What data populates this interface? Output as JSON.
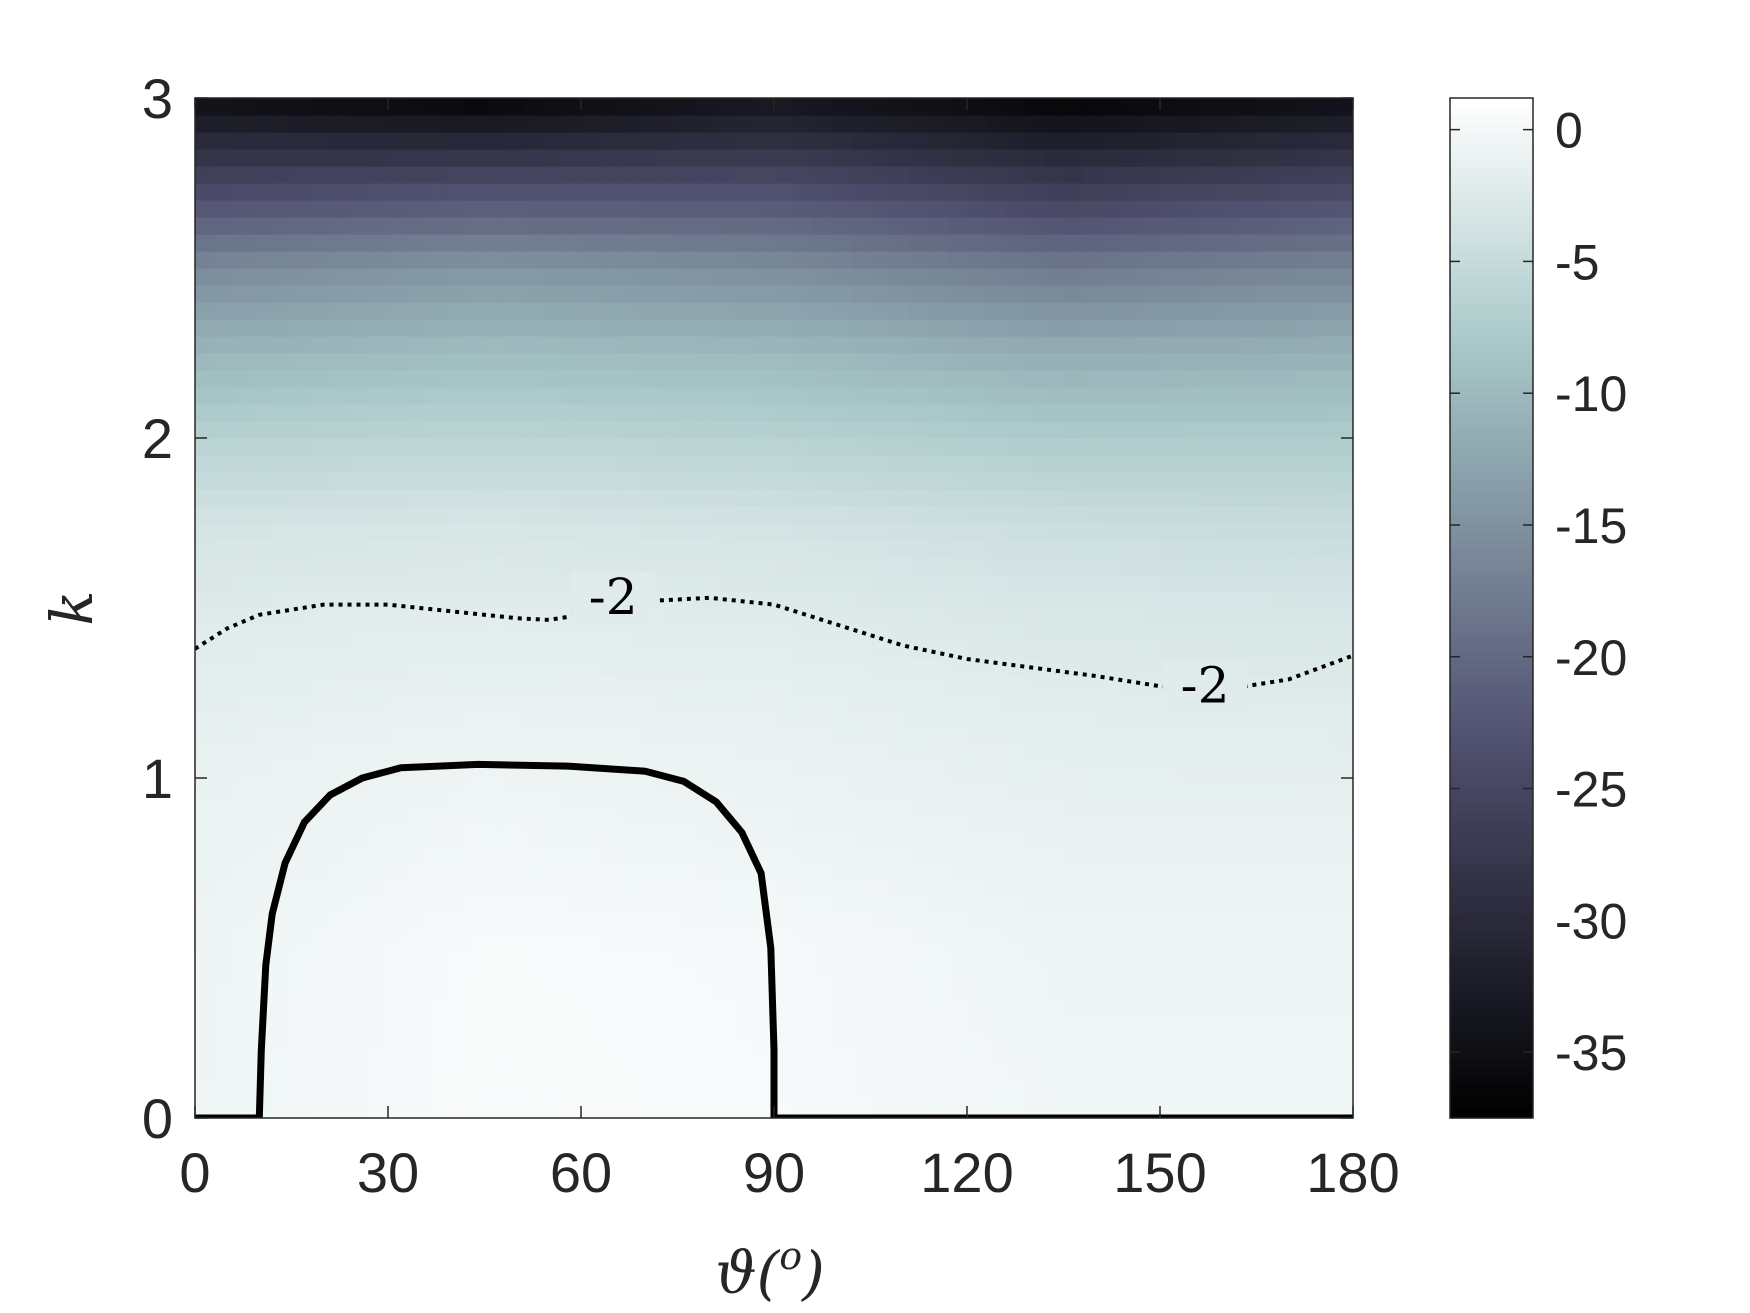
{
  "chart_data": {
    "type": "heatmap",
    "xlabel": "ϑ(o)",
    "xlabel_main": "ϑ(",
    "xlabel_sup": "o",
    "xlabel_close": ")",
    "ylabel": "k",
    "xlim": [
      0,
      180
    ],
    "ylim": [
      0,
      3
    ],
    "x_ticks": [
      0,
      30,
      60,
      90,
      120,
      150,
      180
    ],
    "y_ticks": [
      0,
      1,
      2,
      3
    ],
    "colorbar": {
      "range": [
        -37.5,
        1.2
      ],
      "ticks": [
        0,
        -5,
        -10,
        -15,
        -20,
        -25,
        -30,
        -35
      ],
      "tick_labels": [
        "0",
        "-5",
        "-10",
        "-15",
        "-20",
        "-25",
        "-30",
        "-35"
      ],
      "colormap": "bone"
    },
    "field_samples": {
      "k": [
        0,
        0.5,
        1,
        1.25,
        1.5,
        1.75,
        2,
        2.25,
        2.5,
        2.75,
        3
      ],
      "theta": [
        0,
        45,
        90,
        135,
        180
      ],
      "values": [
        [
          -0.5,
          0.5,
          0.3,
          -0.3,
          -0.3
        ],
        [
          -0.6,
          0.4,
          0.2,
          -0.6,
          -0.6
        ],
        [
          -1.2,
          -0.5,
          -1.0,
          -1.5,
          -1.6
        ],
        [
          -1.7,
          -1.3,
          -1.5,
          -2.1,
          -2.3
        ],
        [
          -2.3,
          -2.0,
          -2.3,
          -3.0,
          -3.2
        ],
        [
          -3.5,
          -3.2,
          -3.6,
          -4.5,
          -4.8
        ],
        [
          -6.5,
          -6.0,
          -6.5,
          -7.5,
          -7.5
        ],
        [
          -10.5,
          -9.5,
          -10.0,
          -11.5,
          -11.0
        ],
        [
          -16.0,
          -14.5,
          -15.5,
          -18.0,
          -16.5
        ],
        [
          -25.0,
          -24.0,
          -24.0,
          -27.0,
          -25.0
        ],
        [
          -35.0,
          -37.0,
          -34.0,
          -37.0,
          -35.0
        ]
      ]
    },
    "contours": [
      {
        "level": -2,
        "style": "dotted",
        "label": "-2",
        "points": [
          [
            0,
            1.38
          ],
          [
            5,
            1.44
          ],
          [
            10,
            1.48
          ],
          [
            20,
            1.51
          ],
          [
            30,
            1.51
          ],
          [
            40,
            1.49
          ],
          [
            50,
            1.47
          ],
          [
            55,
            1.465
          ],
          [
            60,
            1.48
          ],
          [
            70,
            1.52
          ],
          [
            80,
            1.53
          ],
          [
            90,
            1.51
          ],
          [
            100,
            1.45
          ],
          [
            110,
            1.39
          ],
          [
            120,
            1.35
          ],
          [
            130,
            1.325
          ],
          [
            140,
            1.3
          ],
          [
            150,
            1.27
          ],
          [
            160,
            1.26
          ],
          [
            170,
            1.29
          ],
          [
            180,
            1.36
          ]
        ],
        "label_positions": [
          [
            65,
            1.5
          ],
          [
            157,
            1.24
          ]
        ]
      },
      {
        "level": 0,
        "style": "solid",
        "label": "",
        "points": [
          [
            10,
            0
          ],
          [
            10.3,
            0.2
          ],
          [
            11,
            0.45
          ],
          [
            12,
            0.6
          ],
          [
            14,
            0.75
          ],
          [
            17,
            0.87
          ],
          [
            21,
            0.95
          ],
          [
            26,
            1.0
          ],
          [
            32,
            1.03
          ],
          [
            44,
            1.04
          ],
          [
            58,
            1.035
          ],
          [
            70,
            1.02
          ],
          [
            76,
            0.99
          ],
          [
            81,
            0.93
          ],
          [
            85,
            0.84
          ],
          [
            88,
            0.72
          ],
          [
            89.5,
            0.5
          ],
          [
            90,
            0.2
          ],
          [
            90,
            0
          ]
        ]
      },
      {
        "level": 0,
        "style": "solid",
        "label": "",
        "points": [
          [
            0,
            0
          ],
          [
            10,
            0
          ]
        ]
      },
      {
        "level": 0,
        "style": "solid",
        "label": "",
        "points": [
          [
            90,
            0
          ],
          [
            180,
            0
          ]
        ]
      }
    ]
  }
}
